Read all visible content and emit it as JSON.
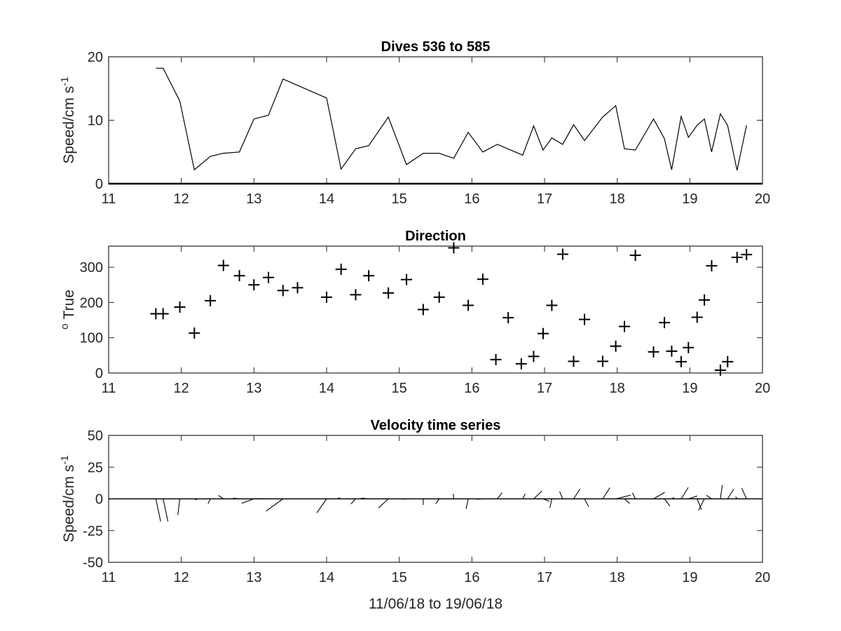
{
  "chart_data": [
    {
      "type": "line",
      "title": "Dives 536 to 585",
      "xlabel": "",
      "ylabel": "Speed/cm s",
      "ylabel_sup": "-1",
      "xlim": [
        11,
        20
      ],
      "ylim": [
        0,
        20
      ],
      "xticks": [
        "11",
        "12",
        "13",
        "14",
        "15",
        "16",
        "17",
        "18",
        "19",
        "20"
      ],
      "yticks": [
        "0",
        "10",
        "20"
      ],
      "grid": false,
      "series": [
        {
          "x": [
            11.65,
            11.75,
            11.98,
            12.18,
            12.4,
            12.58,
            12.8,
            13.0,
            13.2,
            13.4,
            14.0,
            14.2,
            14.4,
            14.58,
            14.85,
            15.1,
            15.33,
            15.55,
            15.75,
            15.95,
            16.15,
            16.35,
            16.7,
            16.85,
            16.98,
            17.1,
            17.25,
            17.4,
            17.55,
            17.8,
            17.98,
            18.1,
            18.25,
            18.5,
            18.65,
            18.75,
            18.88,
            18.98,
            19.1,
            19.2,
            19.3,
            19.42,
            19.52,
            19.65,
            19.78
          ],
          "values": [
            18.2,
            18.2,
            13.0,
            2.2,
            4.3,
            4.8,
            5.0,
            10.2,
            10.8,
            16.5,
            13.5,
            2.3,
            5.5,
            6.0,
            10.5,
            3.0,
            4.8,
            4.8,
            4.0,
            8.1,
            5.0,
            6.2,
            4.5,
            9.1,
            5.3,
            7.2,
            6.2,
            9.3,
            6.8,
            10.5,
            12.3,
            5.5,
            5.3,
            10.2,
            7.1,
            2.2,
            10.6,
            7.3,
            9.2,
            10.2,
            5.0,
            11.0,
            9.2,
            2.1,
            9.2
          ]
        }
      ]
    },
    {
      "type": "scatter",
      "title": "Direction",
      "xlabel": "",
      "ylabel": "True",
      "ylabel_sup": "o",
      "xlim": [
        11,
        20
      ],
      "ylim": [
        0,
        360
      ],
      "xticks": [
        "11",
        "12",
        "13",
        "14",
        "15",
        "16",
        "17",
        "18",
        "19",
        "20"
      ],
      "yticks": [
        "0",
        "100",
        "200",
        "300"
      ],
      "marker": "+",
      "grid": false,
      "series": [
        {
          "x": [
            11.65,
            11.75,
            11.98,
            12.18,
            12.4,
            12.58,
            12.8,
            13.0,
            13.2,
            13.4,
            13.6,
            14.0,
            14.2,
            14.4,
            14.58,
            14.85,
            15.1,
            15.33,
            15.55,
            15.75,
            15.95,
            16.15,
            16.33,
            16.5,
            16.68,
            16.85,
            16.98,
            17.1,
            17.25,
            17.4,
            17.55,
            17.8,
            17.98,
            18.1,
            18.25,
            18.5,
            18.65,
            18.75,
            18.88,
            18.98,
            19.1,
            19.2,
            19.3,
            19.42,
            19.52,
            19.65,
            19.78
          ],
          "values": [
            168,
            168,
            187,
            113,
            205,
            305,
            276,
            250,
            271,
            234,
            242,
            215,
            294,
            222,
            276,
            227,
            265,
            180,
            215,
            355,
            192,
            266,
            38,
            157,
            26,
            47,
            112,
            192,
            337,
            33,
            152,
            33,
            76,
            132,
            334,
            60,
            143,
            62,
            32,
            72,
            158,
            207,
            304,
            8,
            32,
            328,
            336
          ]
        }
      ]
    },
    {
      "type": "line",
      "subtype": "stick-vectors",
      "title": "Velocity time series",
      "xlabel": "11/06/18 to 19/06/18",
      "ylabel": "Speed/cm s",
      "ylabel_sup": "-1",
      "xlim": [
        11,
        20
      ],
      "ylim": [
        -50,
        50
      ],
      "xticks": [
        "11",
        "12",
        "13",
        "14",
        "15",
        "16",
        "17",
        "18",
        "19",
        "20"
      ],
      "yticks": [
        "-50",
        "-25",
        "0",
        "25",
        "50"
      ],
      "grid": false,
      "series": [
        {
          "x": [
            11.65,
            11.75,
            11.98,
            12.18,
            12.4,
            12.58,
            12.8,
            13.0,
            13.2,
            13.4,
            14.0,
            14.2,
            14.4,
            14.58,
            14.85,
            15.1,
            15.33,
            15.55,
            15.75,
            15.95,
            16.15,
            16.35,
            16.7,
            16.85,
            16.98,
            17.1,
            17.25,
            17.4,
            17.55,
            17.8,
            17.98,
            18.1,
            18.25,
            18.5,
            18.65,
            18.75,
            18.88,
            18.98,
            19.1,
            19.2,
            19.3,
            19.42,
            19.52,
            19.65,
            19.78
          ],
          "speed": [
            18.2,
            18.2,
            13.0,
            2.2,
            4.3,
            4.8,
            5.0,
            10.2,
            10.8,
            16.5,
            13.5,
            2.3,
            5.5,
            6.0,
            10.5,
            3.0,
            4.8,
            4.8,
            4.0,
            8.1,
            5.0,
            6.2,
            4.5,
            9.1,
            5.3,
            7.2,
            6.2,
            9.3,
            6.8,
            10.5,
            12.3,
            5.5,
            5.3,
            10.2,
            7.1,
            2.2,
            10.6,
            7.3,
            9.2,
            10.2,
            5.0,
            11.0,
            9.2,
            2.1,
            9.2
          ],
          "direction": [
            168,
            168,
            187,
            113,
            205,
            305,
            276,
            250,
            271,
            234,
            215,
            294,
            222,
            276,
            227,
            265,
            180,
            215,
            355,
            192,
            266,
            38,
            26,
            47,
            112,
            192,
            337,
            33,
            152,
            33,
            76,
            132,
            334,
            60,
            143,
            62,
            32,
            72,
            158,
            207,
            304,
            8,
            32,
            328,
            336
          ]
        }
      ]
    }
  ]
}
